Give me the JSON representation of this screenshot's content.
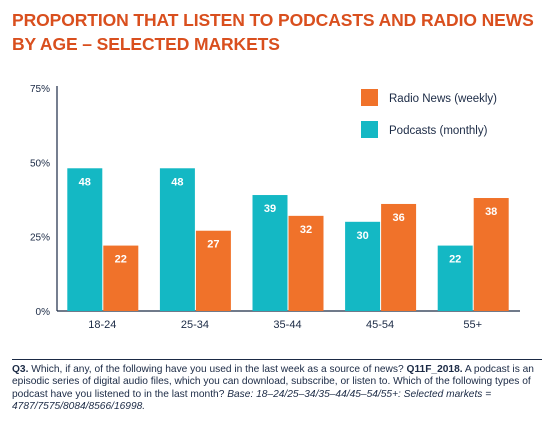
{
  "title": {
    "line1": "PROPORTION THAT LISTEN TO PODCASTS AND RADIO NEWS",
    "line2": "BY AGE – SELECTED MARKETS"
  },
  "colors": {
    "title": "#d94f1e",
    "podcasts": "#14b8c4",
    "radio": "#f0722a",
    "text": "#1b2a45",
    "axis": "#1b2a45"
  },
  "chart_data": {
    "type": "bar",
    "categories": [
      "18-24",
      "25-34",
      "35-44",
      "45-54",
      "55+"
    ],
    "series": [
      {
        "name": "Podcasts (monthly)",
        "values": [
          48,
          48,
          39,
          30,
          22
        ],
        "color": "#14b8c4"
      },
      {
        "name": "Radio News (weekly)",
        "values": [
          22,
          27,
          32,
          36,
          38
        ],
        "color": "#f0722a"
      }
    ],
    "yticks": [
      "0%",
      "25%",
      "50%",
      "75%"
    ],
    "ylim": [
      0,
      75
    ],
    "legend": [
      {
        "label": "Radio News (weekly)",
        "color": "#f0722a"
      },
      {
        "label": "Podcasts (monthly)",
        "color": "#14b8c4"
      }
    ],
    "legend_position": "top-right",
    "grid": false
  },
  "footnote": {
    "question_id": "Q3.",
    "question_text": " Which, if any, of the following have you used in the last week as a source of news? ",
    "question_code": "Q11F_2018.",
    "podcast_text": " A podcast is an episodic series of digital audio files, which you can download, subscribe, or listen to. Which of the following types of podcast have you listened to in the last month? ",
    "base_text": "Base: 18–24/25–34/35–44/45–54/55+: Selected markets = 4787/7575/8084/8566/16998."
  }
}
